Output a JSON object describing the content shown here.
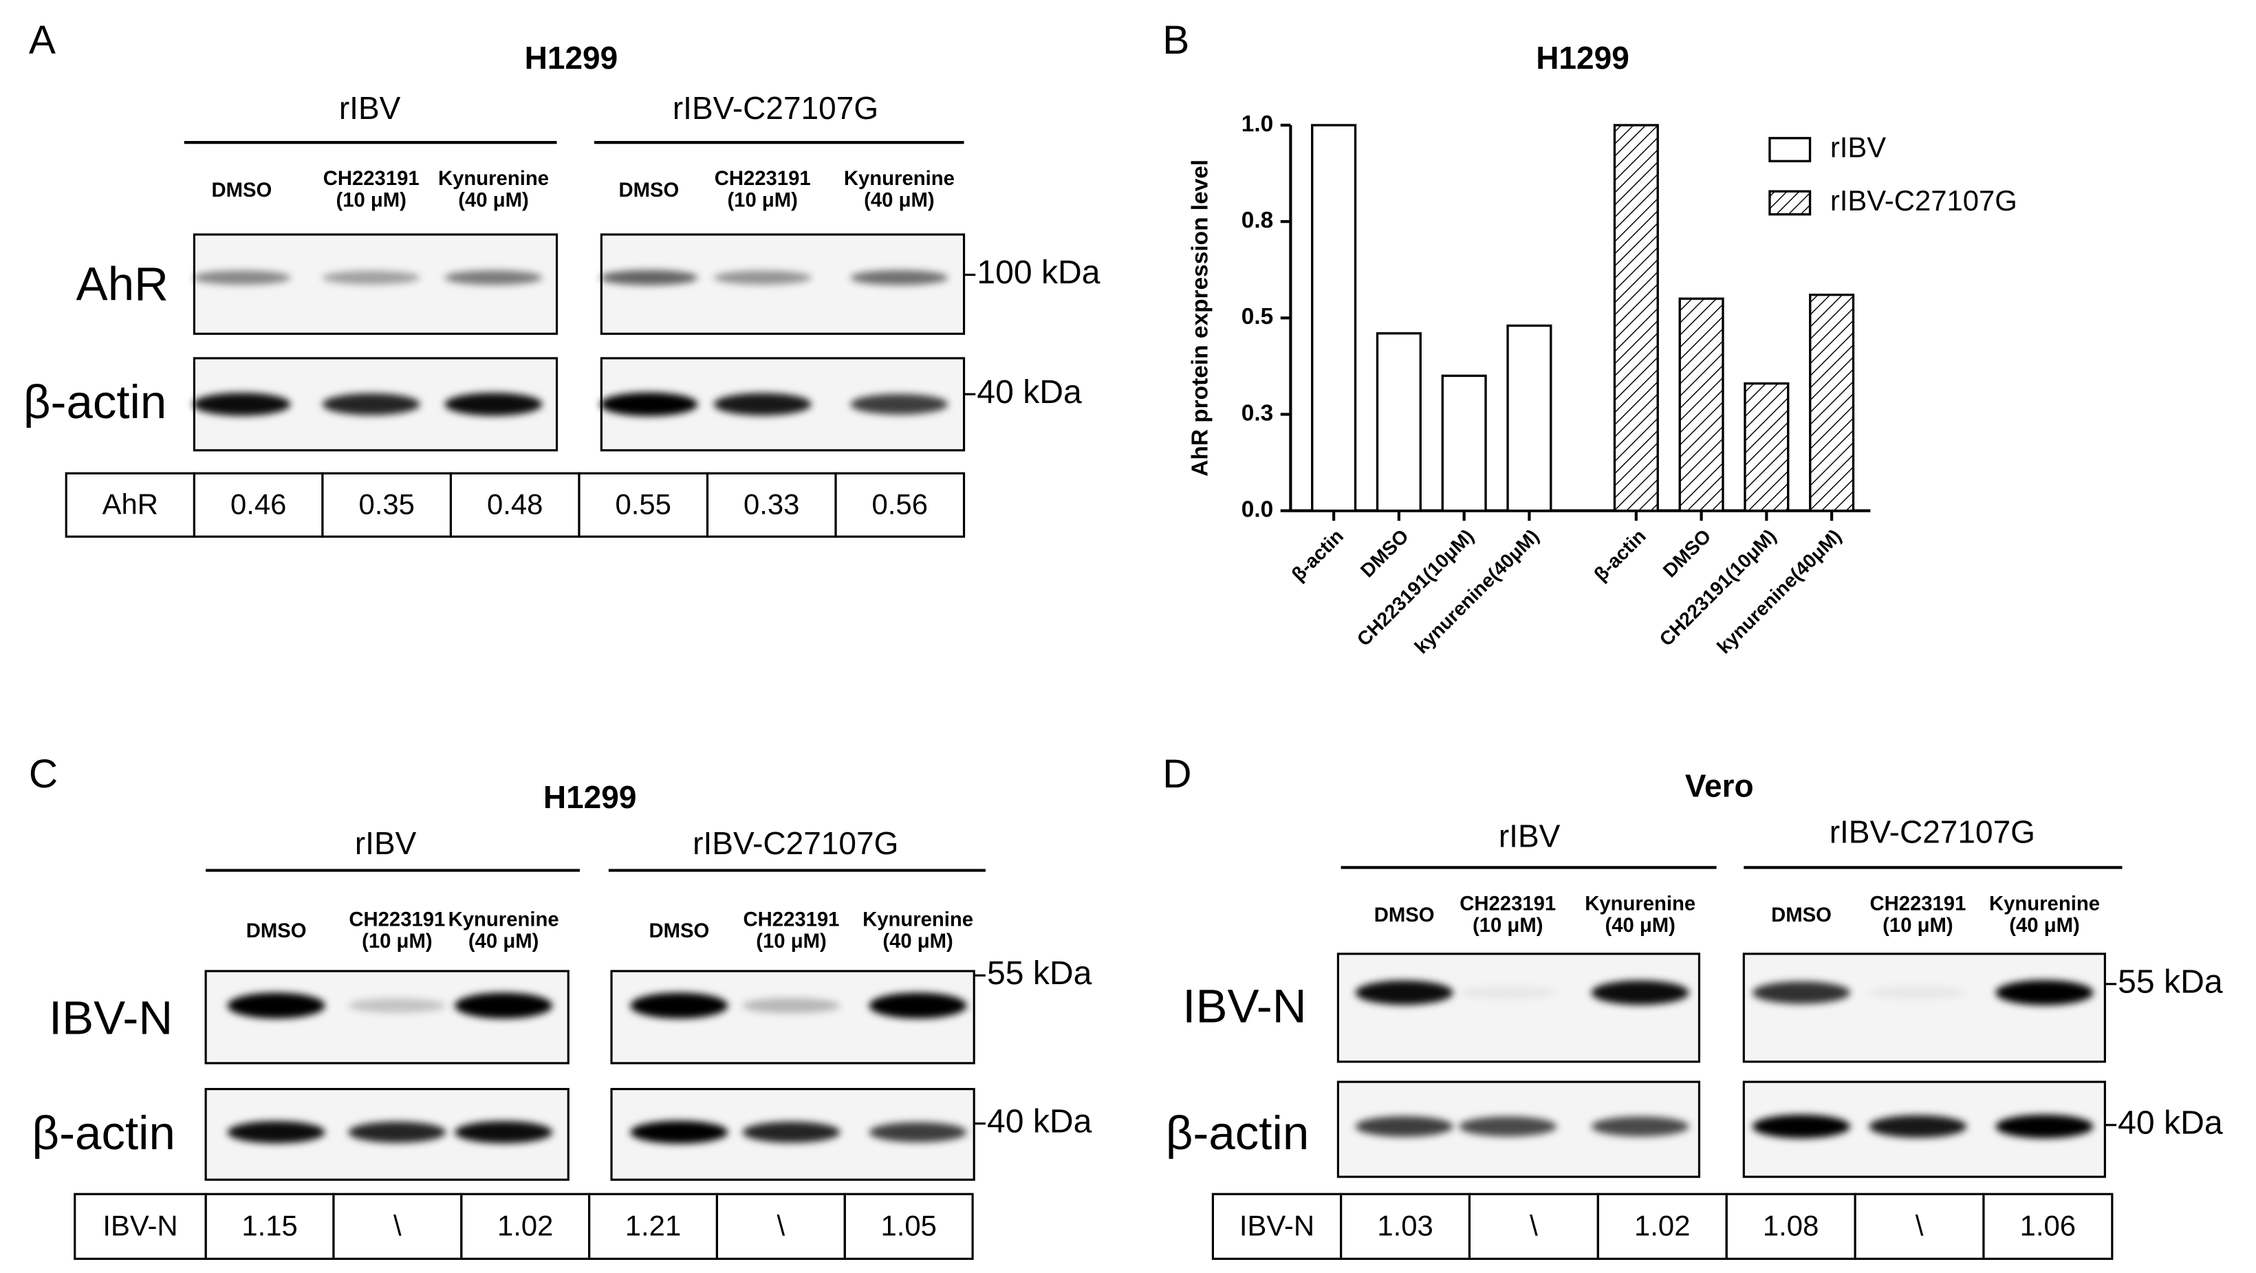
{
  "panel_a": {
    "letter": "A",
    "title": "H1299",
    "groups": [
      "rIBV",
      "rIBV-C27107G"
    ],
    "lanes": [
      [
        "DMSO"
      ],
      [
        "CH223191",
        "(10 μM)"
      ],
      [
        "Kynurenine",
        "(40 μM)"
      ],
      [
        "DMSO"
      ],
      [
        "CH223191",
        "(10 μM)"
      ],
      [
        "Kynurenine",
        "(40 μM)"
      ]
    ],
    "rows": [
      {
        "label": "AhR",
        "marker": "100 kDa"
      },
      {
        "label": "β-actin",
        "marker": "40 kDa"
      }
    ],
    "table": [
      "AhR",
      "0.46",
      "0.35",
      "0.48",
      "0.55",
      "0.33",
      "0.56"
    ]
  },
  "chart_data": {
    "type": "bar",
    "letter": "B",
    "title": "H1299",
    "y_label": "AhR protein expression level",
    "categories": [
      "β-actin",
      "DMSO",
      "CH223191(10μM)",
      "kynurenine(40μM)",
      "β-actin",
      "DMSO",
      "CH223191(10μM)",
      "kynurenine(40μM)"
    ],
    "series": [
      {
        "name": "rIBV",
        "color": "#ffffff",
        "pattern": "none",
        "values": [
          1.0,
          0.46,
          0.35,
          0.48,
          null,
          null,
          null,
          null
        ]
      },
      {
        "name": "rIBV-C27107G",
        "color": "#ffffff",
        "pattern": "hatch",
        "values": [
          null,
          null,
          null,
          null,
          1.0,
          0.55,
          0.33,
          0.56
        ]
      }
    ],
    "ylim": [
      0,
      1
    ],
    "yticks": [
      {
        "value": 0,
        "label": "0.0"
      },
      {
        "value": 0.25,
        "label": "0.3"
      },
      {
        "value": 0.5,
        "label": "0.5"
      },
      {
        "value": 0.75,
        "label": "0.8"
      },
      {
        "value": 1,
        "label": "1.0"
      }
    ],
    "legend": "upper right",
    "grid": false
  },
  "panel_c": {
    "letter": "C",
    "title": "H1299",
    "groups": [
      "rIBV",
      "rIBV-C27107G"
    ],
    "lanes": [
      [
        "DMSO"
      ],
      [
        "CH223191",
        "(10 μM)"
      ],
      [
        "Kynurenine",
        "(40 μM)"
      ],
      [
        "DMSO"
      ],
      [
        "CH223191",
        "(10 μM)"
      ],
      [
        "Kynurenine",
        "(40 μM)"
      ]
    ],
    "rows": [
      {
        "label": "IBV-N",
        "marker": "55 kDa"
      },
      {
        "label": "β-actin",
        "marker": "40 kDa"
      }
    ],
    "table": [
      "IBV-N",
      "1.15",
      "\\",
      "1.02",
      "1.21",
      "\\",
      "1.05"
    ]
  },
  "panel_d": {
    "letter": "D",
    "title": "Vero",
    "groups": [
      "rIBV",
      "rIBV-C27107G"
    ],
    "lanes": [
      [
        "DMSO"
      ],
      [
        "CH223191",
        "(10 μM)"
      ],
      [
        "Kynurenine",
        "(40 μM)"
      ],
      [
        "DMSO"
      ],
      [
        "CH223191",
        "(10 μM)"
      ],
      [
        "Kynurenine",
        "(40 μM)"
      ]
    ],
    "rows": [
      {
        "label": "IBV-N",
        "marker": "55 kDa"
      },
      {
        "label": "β-actin",
        "marker": "40 kDa"
      }
    ],
    "table": [
      "IBV-N",
      "1.03",
      "\\",
      "1.02",
      "1.08",
      "\\",
      "1.06"
    ]
  }
}
